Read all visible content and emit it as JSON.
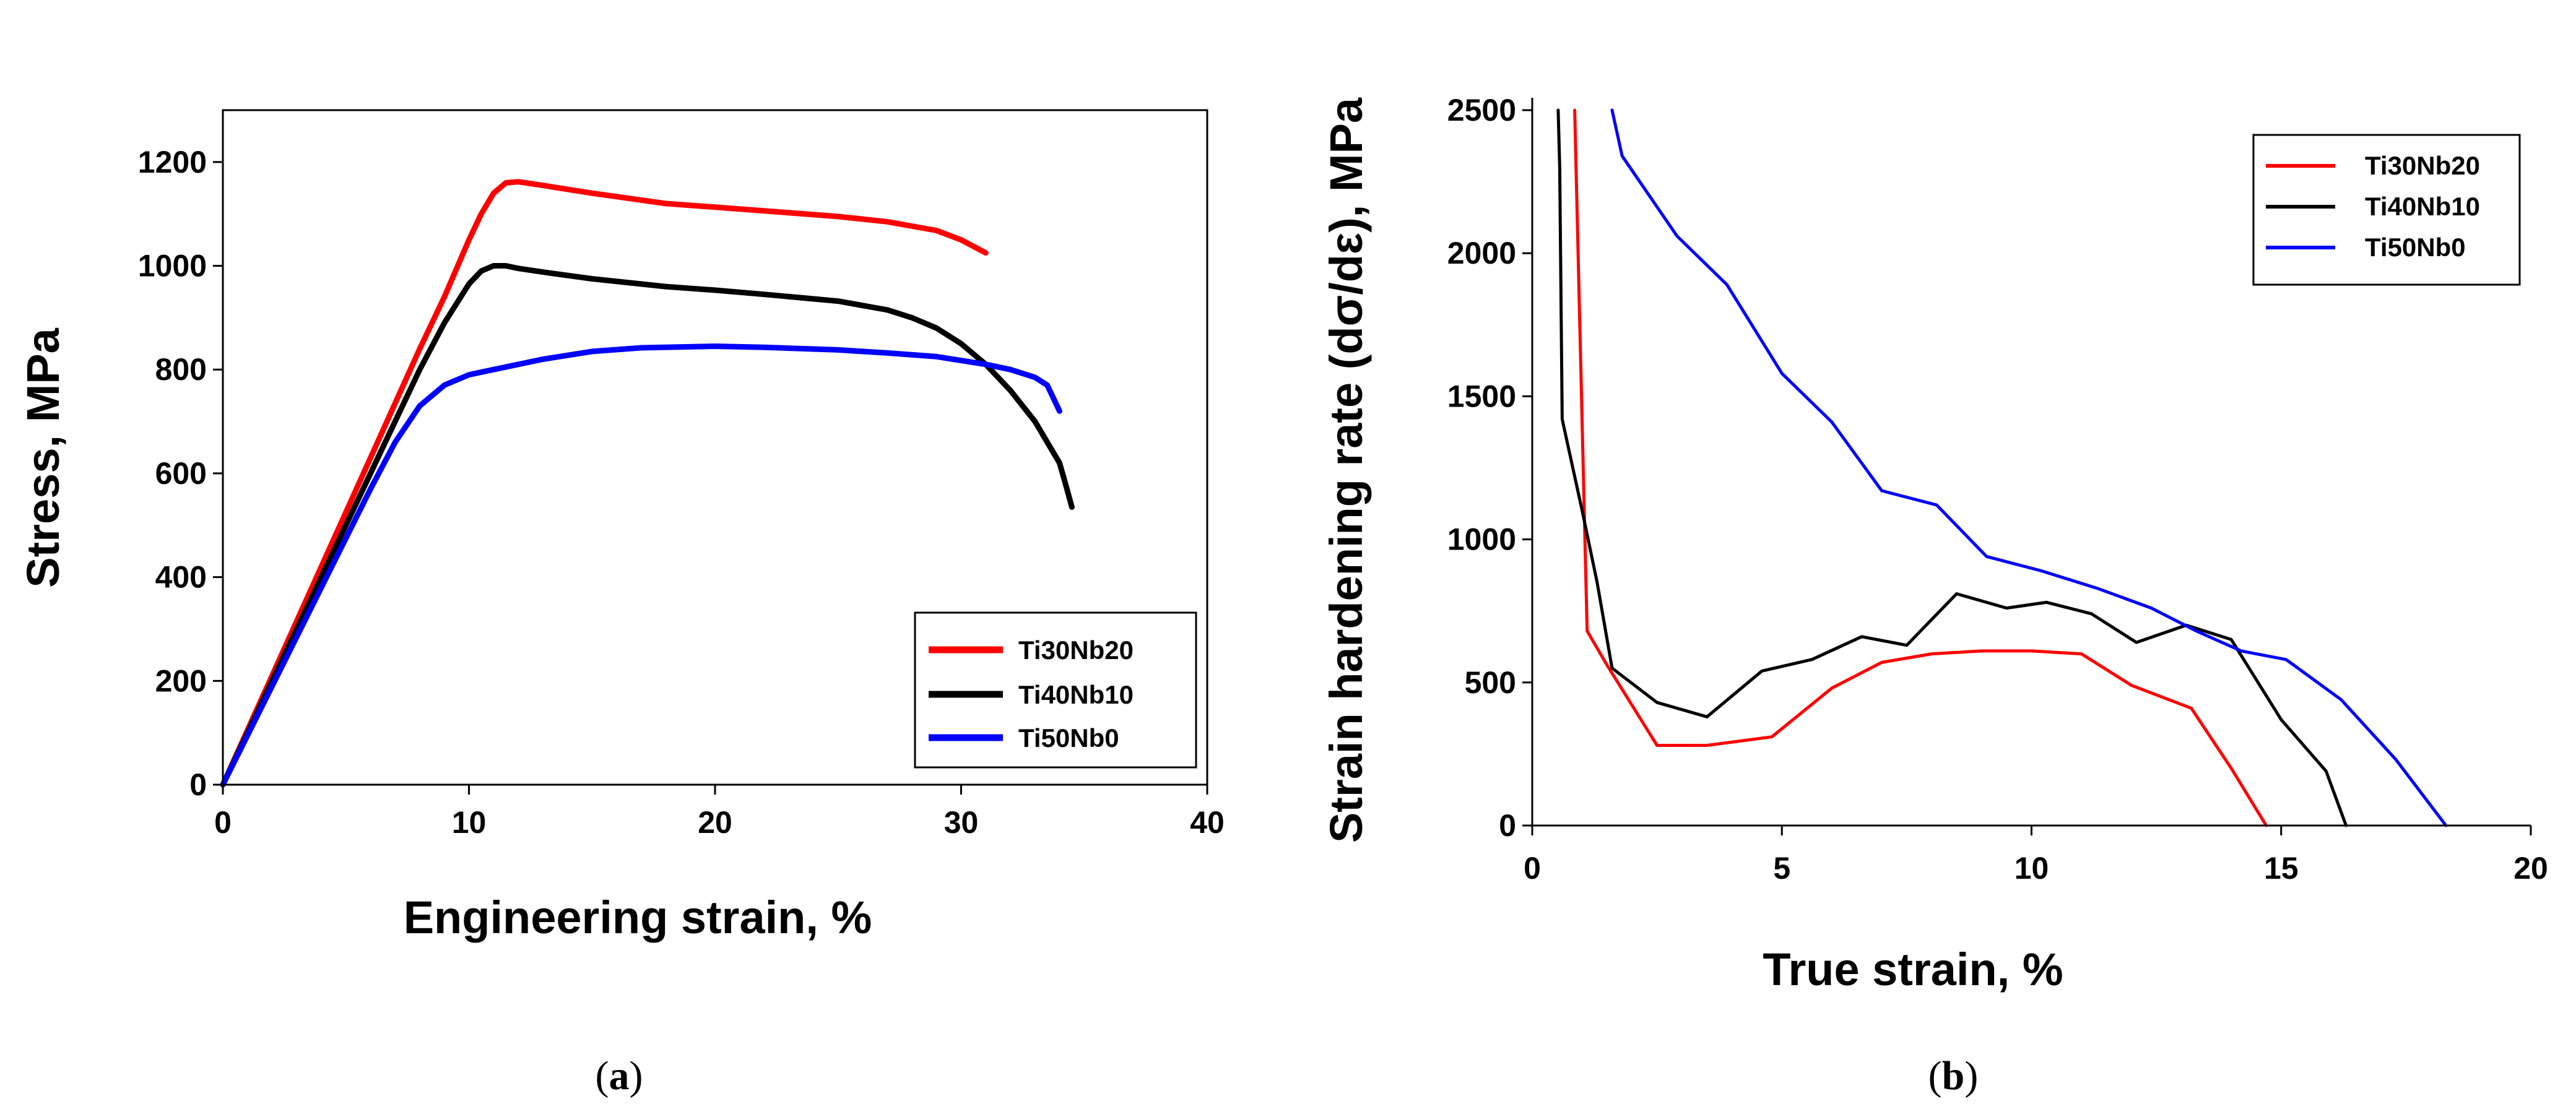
{
  "chart_data": [
    {
      "type": "line",
      "panel": "a",
      "caption_open": "(",
      "caption_letter": "a",
      "caption_close": ")",
      "xlabel": "Engineering strain, %",
      "ylabel": "Stress, MPa",
      "xlim": [
        0,
        40
      ],
      "ylim": [
        0,
        1300
      ],
      "xticks": [
        0,
        10,
        20,
        30,
        40
      ],
      "yticks": [
        0,
        200,
        400,
        600,
        800,
        1000,
        1200
      ],
      "legend_position": "bottom-right",
      "series": [
        {
          "name": "Ti30Nb20",
          "color": "#ff0000",
          "x": [
            0,
            2,
            4,
            6,
            8,
            9,
            10,
            10.5,
            11,
            11.5,
            12,
            13,
            15,
            18,
            20,
            22,
            25,
            27,
            29,
            30,
            31
          ],
          "y": [
            0,
            210,
            420,
            630,
            840,
            940,
            1050,
            1100,
            1140,
            1160,
            1162,
            1155,
            1140,
            1120,
            1113,
            1106,
            1095,
            1085,
            1068,
            1050,
            1025
          ]
        },
        {
          "name": "Ti40Nb10",
          "color": "#000000",
          "x": [
            0,
            2,
            4,
            6,
            8,
            9,
            10,
            10.5,
            11,
            11.5,
            12,
            13,
            15,
            18,
            20,
            22,
            25,
            27,
            28,
            29,
            30,
            31,
            32,
            33,
            34,
            34.3,
            34.5
          ],
          "y": [
            0,
            200,
            400,
            600,
            800,
            890,
            965,
            990,
            1000,
            1000,
            995,
            988,
            975,
            960,
            953,
            945,
            932,
            915,
            900,
            880,
            850,
            810,
            760,
            700,
            620,
            570,
            535
          ]
        },
        {
          "name": "Ti50Nb0",
          "color": "#0000ff",
          "x": [
            0,
            2,
            4,
            6,
            7,
            8,
            9,
            10,
            11,
            13,
            15,
            17,
            20,
            22,
            25,
            27,
            29,
            31,
            32,
            33,
            33.5,
            34
          ],
          "y": [
            0,
            190,
            380,
            570,
            660,
            730,
            770,
            790,
            800,
            820,
            835,
            842,
            845,
            843,
            838,
            832,
            825,
            810,
            800,
            785,
            770,
            720
          ]
        }
      ]
    },
    {
      "type": "line",
      "panel": "b",
      "caption_open": "(",
      "caption_letter": "b",
      "caption_close": ")",
      "xlabel": "True strain, %",
      "ylabel": "Strain hardening rate (dσ/dε), MPa",
      "xlim": [
        0,
        20
      ],
      "ylim": [
        0,
        2500
      ],
      "xticks": [
        0,
        5,
        10,
        15,
        20
      ],
      "yticks": [
        0,
        500,
        1000,
        1500,
        2000,
        2500
      ],
      "legend_position": "top-right",
      "series": [
        {
          "name": "Ti30Nb20",
          "color": "#ff0000",
          "x": [
            0.85,
            1.0,
            1.1,
            1.5,
            2.5,
            3.5,
            4.8,
            6.0,
            7.0,
            8.0,
            9.0,
            10.0,
            11.0,
            12.0,
            13.2,
            14.0,
            14.7
          ],
          "y": [
            2500,
            1400,
            680,
            560,
            280,
            280,
            310,
            480,
            570,
            600,
            610,
            610,
            600,
            490,
            410,
            200,
            0
          ]
        },
        {
          "name": "Ti40Nb10",
          "color": "#000000",
          "x": [
            0.52,
            0.55,
            0.6,
            1.0,
            1.3,
            1.6,
            2.5,
            3.5,
            4.6,
            5.6,
            6.6,
            7.5,
            8.5,
            9.5,
            10.3,
            11.2,
            12.1,
            13.1,
            14.0,
            15.0,
            15.9,
            16.3
          ],
          "y": [
            2500,
            2300,
            1420,
            1100,
            850,
            550,
            430,
            380,
            540,
            580,
            660,
            630,
            810,
            760,
            780,
            740,
            640,
            700,
            650,
            370,
            190,
            0
          ]
        },
        {
          "name": "Ti50Nb0",
          "color": "#0000ff",
          "x": [
            1.6,
            1.8,
            2.9,
            3.9,
            5.0,
            6.0,
            7.0,
            8.1,
            9.1,
            10.2,
            11.3,
            12.4,
            13.3,
            14.2,
            15.1,
            16.2,
            17.3,
            18.3
          ],
          "y": [
            2500,
            2340,
            2060,
            1890,
            1580,
            1410,
            1170,
            1120,
            940,
            890,
            830,
            760,
            680,
            610,
            580,
            440,
            230,
            0
          ]
        }
      ]
    }
  ]
}
